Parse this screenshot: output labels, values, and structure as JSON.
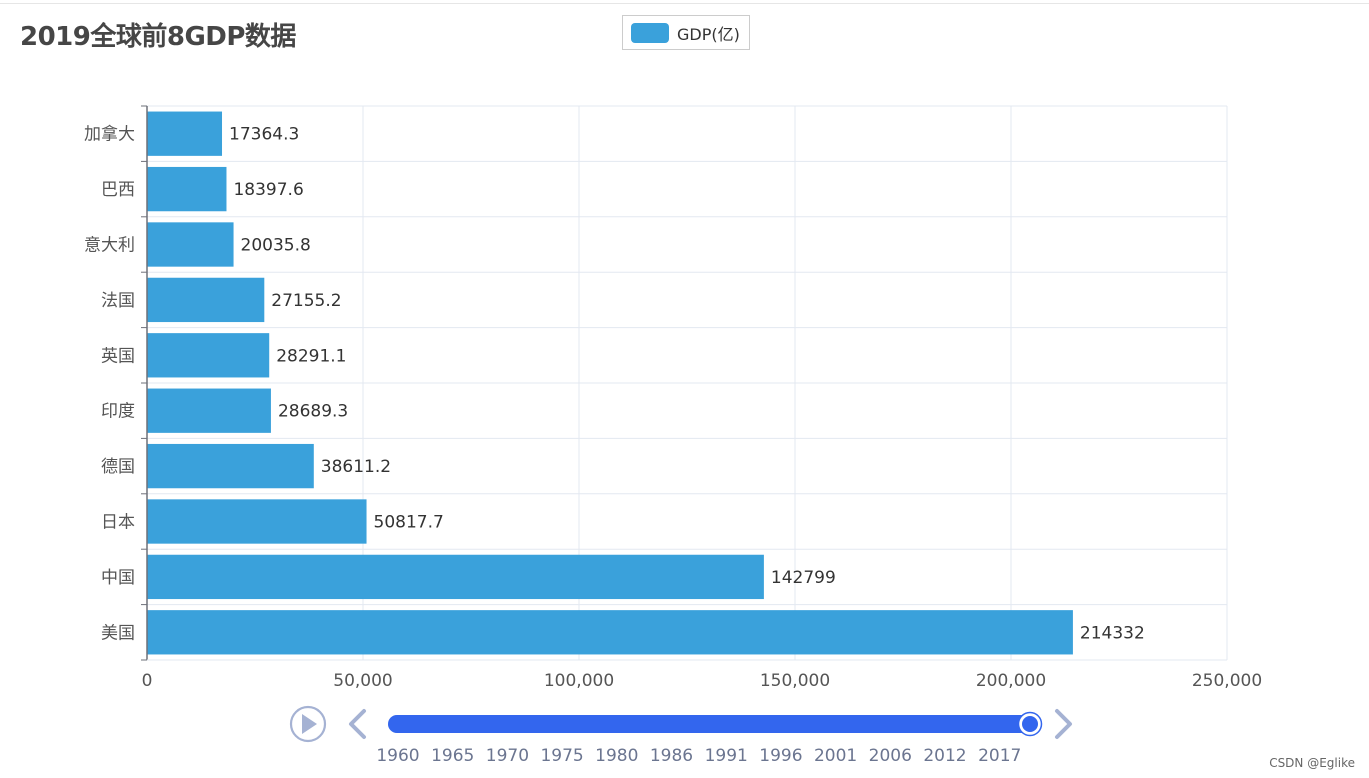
{
  "title": "2019全球前8GDP数据",
  "legend": {
    "label": "GDP(亿)",
    "color": "#3aa1db"
  },
  "chart_data": {
    "type": "bar",
    "orientation": "horizontal",
    "title": "2019全球前8GDP数据",
    "series": [
      {
        "name": "GDP(亿)",
        "values": [
          214332,
          142799,
          50817.7,
          38611.2,
          28689.3,
          28291.1,
          27155.2,
          20035.8,
          18397.6,
          17364.3
        ]
      }
    ],
    "categories": [
      "美国",
      "中国",
      "日本",
      "德国",
      "印度",
      "英国",
      "法国",
      "意大利",
      "巴西",
      "加拿大"
    ],
    "value_labels": [
      "214332",
      "142799",
      "50817.7",
      "38611.2",
      "28689.3",
      "28291.1",
      "27155.2",
      "20035.8",
      "18397.6",
      "17364.3"
    ],
    "xlim": [
      0,
      250000
    ],
    "x_ticks": [
      0,
      50000,
      100000,
      150000,
      200000,
      250000
    ],
    "x_tick_labels": [
      "0",
      "50,000",
      "100,000",
      "150,000",
      "200,000",
      "250,000"
    ],
    "grid": true
  },
  "timeline": {
    "years": [
      "1960",
      "1965",
      "1970",
      "1975",
      "1980",
      "1986",
      "1991",
      "1996",
      "2001",
      "2006",
      "2012",
      "2017"
    ],
    "progress": 1.0,
    "play_icon": "play-icon",
    "prev_icon": "chevron-left-icon",
    "next_icon": "chevron-right-icon"
  },
  "watermark": "CSDN @Eglike"
}
